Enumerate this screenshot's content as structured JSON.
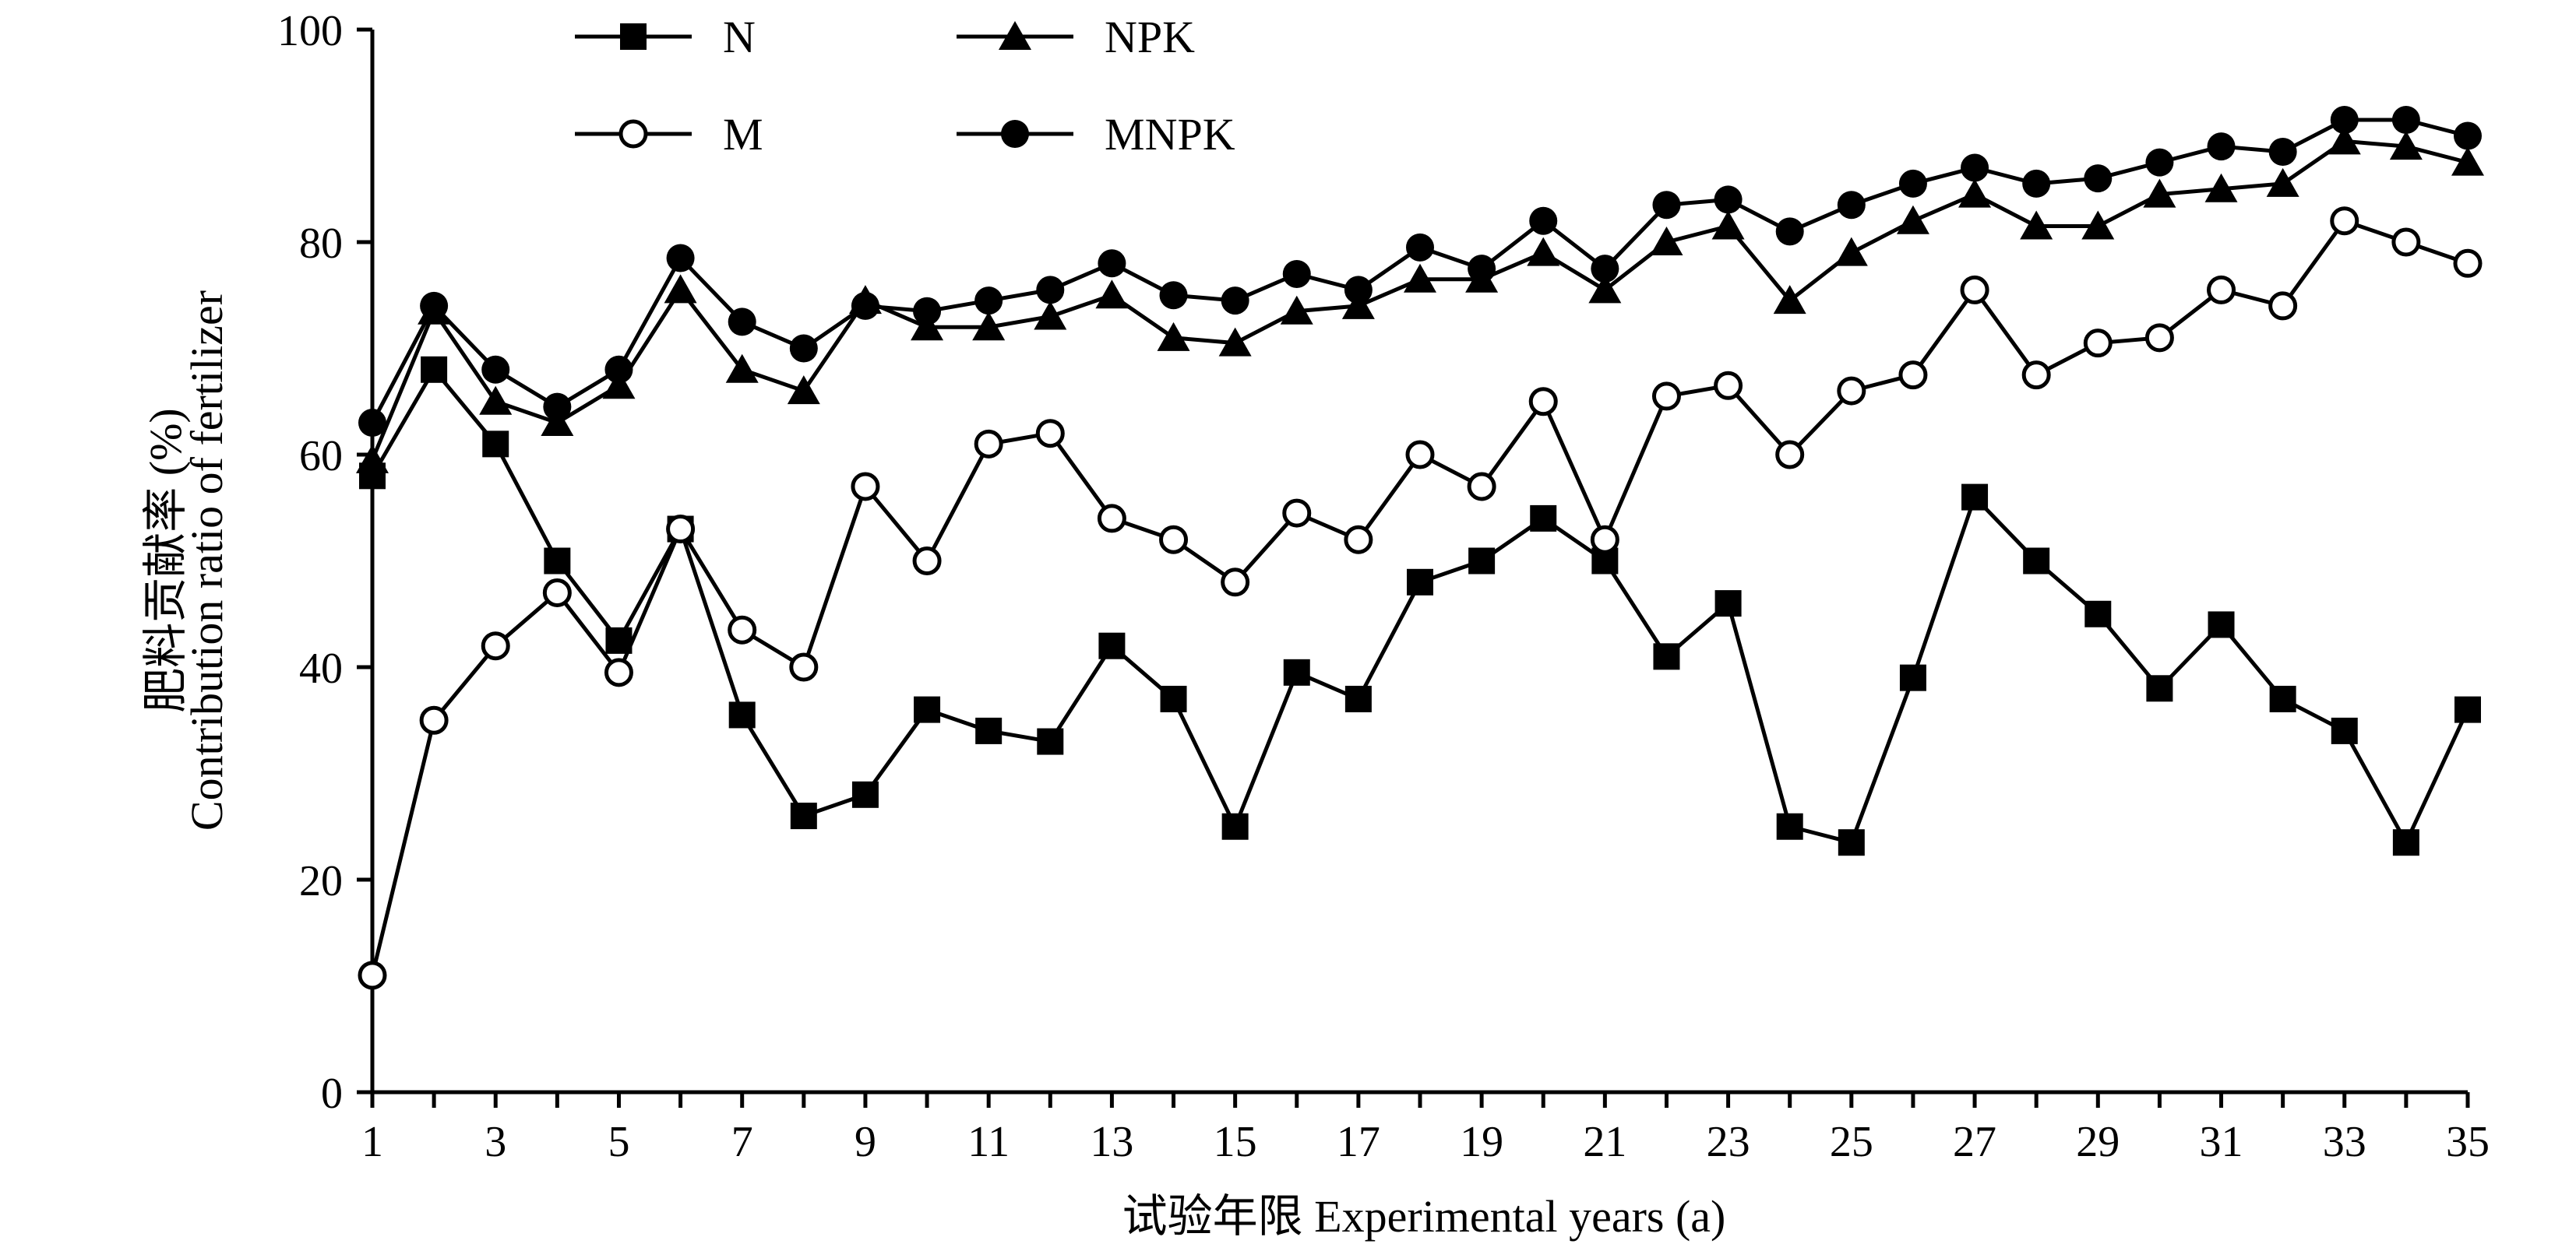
{
  "chart_data": {
    "type": "line",
    "title": "",
    "xlabel": "试验年限 Experimental years (a)",
    "ylabel_cn": "肥料贡献率 (%)",
    "ylabel_en": "Contribution ratio of fertilizer",
    "xlim": [
      1,
      35
    ],
    "ylim": [
      0,
      100
    ],
    "xticks": [
      "1",
      "3",
      "5",
      "7",
      "9",
      "11",
      "13",
      "15",
      "17",
      "19",
      "21",
      "23",
      "25",
      "27",
      "29",
      "31",
      "33",
      "35"
    ],
    "yticks": [
      "0",
      "20",
      "40",
      "60",
      "80",
      "100"
    ],
    "grid": false,
    "legend_position": "top-left",
    "x": [
      1,
      2,
      3,
      4,
      5,
      6,
      7,
      8,
      9,
      10,
      11,
      12,
      13,
      14,
      15,
      16,
      17,
      18,
      19,
      20,
      21,
      22,
      23,
      24,
      25,
      26,
      27,
      28,
      29,
      30,
      31,
      32,
      33,
      34,
      35
    ],
    "series": [
      {
        "name": "N",
        "marker": "square-filled",
        "values": [
          58,
          68,
          61,
          50,
          42.5,
          53,
          35.5,
          26,
          28,
          36,
          34,
          33,
          42,
          37,
          25,
          39.5,
          37,
          48,
          50,
          54,
          50,
          41,
          46,
          25,
          23.5,
          39,
          56,
          50,
          45,
          38,
          44,
          37,
          34,
          23.5,
          36
        ]
      },
      {
        "name": "NPK",
        "marker": "triangle-filled",
        "values": [
          59.5,
          73.5,
          65,
          63,
          66.5,
          75.5,
          68,
          66,
          74.5,
          72,
          72,
          73,
          75,
          71,
          70.5,
          73.5,
          74,
          76.5,
          76.5,
          79,
          75.5,
          80,
          81.5,
          74.5,
          79,
          82,
          84.5,
          81.5,
          81.5,
          84.5,
          85,
          85.5,
          89.5,
          89,
          87.5
        ]
      },
      {
        "name": "M",
        "marker": "circle-open",
        "values": [
          11,
          35,
          42,
          47,
          39.5,
          53,
          43.5,
          40,
          57,
          50,
          61,
          62,
          54,
          52,
          48,
          54.5,
          52,
          60,
          57,
          65,
          52,
          65.5,
          66.5,
          60,
          66,
          67.5,
          75.5,
          67.5,
          70.5,
          71,
          75.5,
          74,
          82,
          80,
          78
        ]
      },
      {
        "name": "MNPK",
        "marker": "circle-filled",
        "values": [
          63,
          74,
          68,
          64.5,
          68,
          78.5,
          72.5,
          70,
          74,
          73.5,
          74.5,
          75.5,
          78,
          75,
          74.5,
          77,
          75.5,
          79.5,
          77.5,
          82,
          77.5,
          83.5,
          84,
          81,
          83.5,
          85.5,
          87,
          85.5,
          86,
          87.5,
          89,
          88.5,
          91.5,
          91.5,
          90
        ]
      }
    ]
  }
}
